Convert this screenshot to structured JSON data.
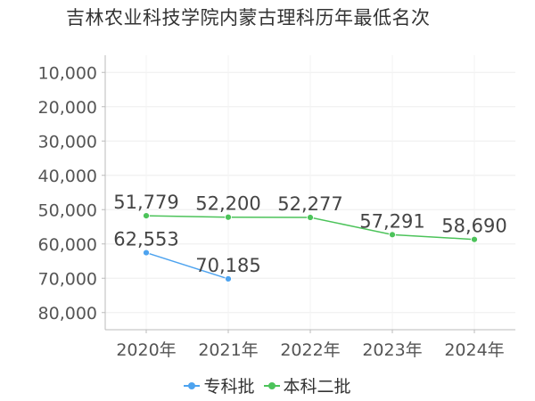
{
  "chart_data": {
    "type": "line",
    "title": "吉林农业科技学院内蒙古理科历年最低名次",
    "categories": [
      "2020年",
      "2021年",
      "2022年",
      "2023年",
      "2024年"
    ],
    "y_ticks": [
      10000,
      20000,
      30000,
      40000,
      50000,
      60000,
      70000,
      80000
    ],
    "y_tick_labels": [
      "10,000",
      "20,000",
      "30,000",
      "40,000",
      "50,000",
      "60,000",
      "70,000",
      "80,000"
    ],
    "ylim": [
      5000,
      85000
    ],
    "y_inverted": true,
    "grid": true,
    "legend_position": "bottom",
    "series": [
      {
        "name": "专科批",
        "color": "#4da3ef",
        "values": [
          62553,
          70185,
          null,
          null,
          null
        ],
        "labels": [
          "62,553",
          "70,185",
          "",
          "",
          ""
        ]
      },
      {
        "name": "本科二批",
        "color": "#4cc35a",
        "values": [
          51779,
          52200,
          52277,
          57291,
          58690
        ],
        "labels": [
          "51,779",
          "52,200",
          "52,277",
          "57,291",
          "58,690"
        ]
      }
    ]
  }
}
